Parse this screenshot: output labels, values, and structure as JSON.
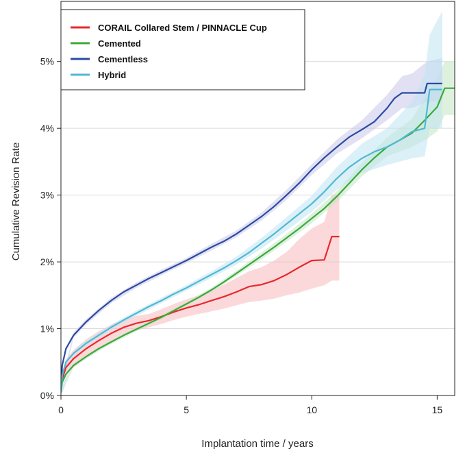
{
  "chart_data": {
    "type": "line",
    "title": "",
    "xlabel": "Implantation time / years",
    "ylabel": "Cumulative Revision Rate",
    "xlim": [
      0,
      15.7
    ],
    "ylim": [
      0,
      5.9
    ],
    "x_ticks": [
      0,
      5,
      10,
      15
    ],
    "y_ticks": [
      0,
      1,
      2,
      3,
      4,
      5
    ],
    "x_tick_labels": [
      "0",
      "5",
      "10",
      "15"
    ],
    "y_tick_labels": [
      "0%",
      "1%",
      "2%",
      "3%",
      "4%",
      "5%"
    ],
    "grid": "horizontal",
    "legend_position": "top-left",
    "series": [
      {
        "name": "CORAIL Collared Stem / PINNACLE Cup",
        "color": "#e8282d",
        "band_color": "#f7b9bb",
        "points": [
          [
            0,
            0.05
          ],
          [
            0.05,
            0.25
          ],
          [
            0.2,
            0.42
          ],
          [
            0.5,
            0.55
          ],
          [
            1,
            0.7
          ],
          [
            1.5,
            0.82
          ],
          [
            2,
            0.93
          ],
          [
            2.5,
            1.02
          ],
          [
            3,
            1.08
          ],
          [
            3.5,
            1.12
          ],
          [
            4,
            1.18
          ],
          [
            4.5,
            1.25
          ],
          [
            5,
            1.31
          ],
          [
            5.5,
            1.36
          ],
          [
            6,
            1.42
          ],
          [
            6.5,
            1.48
          ],
          [
            7,
            1.55
          ],
          [
            7.5,
            1.63
          ],
          [
            8,
            1.66
          ],
          [
            8.5,
            1.72
          ],
          [
            9,
            1.81
          ],
          [
            9.5,
            1.92
          ],
          [
            10,
            2.02
          ],
          [
            10.5,
            2.03
          ],
          [
            10.8,
            2.38
          ],
          [
            11.1,
            2.38
          ]
        ],
        "lower": [
          [
            0,
            0.0
          ],
          [
            0.05,
            0.15
          ],
          [
            0.2,
            0.3
          ],
          [
            0.5,
            0.42
          ],
          [
            1,
            0.56
          ],
          [
            1.5,
            0.68
          ],
          [
            2,
            0.8
          ],
          [
            2.5,
            0.9
          ],
          [
            3,
            0.97
          ],
          [
            3.5,
            1.02
          ],
          [
            4,
            1.07
          ],
          [
            4.5,
            1.13
          ],
          [
            5,
            1.18
          ],
          [
            5.5,
            1.22
          ],
          [
            6,
            1.26
          ],
          [
            6.5,
            1.3
          ],
          [
            7,
            1.35
          ],
          [
            7.5,
            1.4
          ],
          [
            8,
            1.42
          ],
          [
            8.5,
            1.45
          ],
          [
            9,
            1.5
          ],
          [
            9.5,
            1.54
          ],
          [
            10,
            1.6
          ],
          [
            10.5,
            1.65
          ],
          [
            10.8,
            1.72
          ],
          [
            11.1,
            1.72
          ]
        ],
        "upper": [
          [
            0,
            0.1
          ],
          [
            0.05,
            0.35
          ],
          [
            0.2,
            0.54
          ],
          [
            0.5,
            0.68
          ],
          [
            1,
            0.84
          ],
          [
            1.5,
            0.96
          ],
          [
            2,
            1.06
          ],
          [
            2.5,
            1.14
          ],
          [
            3,
            1.19
          ],
          [
            3.5,
            1.22
          ],
          [
            4,
            1.29
          ],
          [
            4.5,
            1.37
          ],
          [
            5,
            1.44
          ],
          [
            5.5,
            1.5
          ],
          [
            6,
            1.58
          ],
          [
            6.5,
            1.66
          ],
          [
            7,
            1.76
          ],
          [
            7.5,
            1.86
          ],
          [
            8,
            1.92
          ],
          [
            8.5,
            2.02
          ],
          [
            9,
            2.15
          ],
          [
            9.5,
            2.34
          ],
          [
            10,
            2.5
          ],
          [
            10.5,
            2.6
          ],
          [
            10.8,
            3.0
          ],
          [
            11.1,
            3.0
          ]
        ]
      },
      {
        "name": "Cemented",
        "color": "#3aa93a",
        "band_color": "#c3e6c3",
        "points": [
          [
            0,
            0.05
          ],
          [
            0.05,
            0.2
          ],
          [
            0.2,
            0.32
          ],
          [
            0.5,
            0.45
          ],
          [
            1,
            0.58
          ],
          [
            1.5,
            0.7
          ],
          [
            2,
            0.8
          ],
          [
            2.5,
            0.9
          ],
          [
            3,
            0.99
          ],
          [
            3.5,
            1.08
          ],
          [
            4,
            1.17
          ],
          [
            4.5,
            1.27
          ],
          [
            5,
            1.37
          ],
          [
            5.5,
            1.47
          ],
          [
            6,
            1.58
          ],
          [
            6.5,
            1.7
          ],
          [
            7,
            1.83
          ],
          [
            7.5,
            1.96
          ],
          [
            8,
            2.09
          ],
          [
            8.5,
            2.22
          ],
          [
            9,
            2.36
          ],
          [
            9.5,
            2.5
          ],
          [
            10,
            2.65
          ],
          [
            10.5,
            2.8
          ],
          [
            11,
            2.98
          ],
          [
            11.5,
            3.18
          ],
          [
            12,
            3.38
          ],
          [
            12.5,
            3.56
          ],
          [
            13,
            3.72
          ],
          [
            13.5,
            3.82
          ],
          [
            14,
            3.93
          ],
          [
            14.5,
            4.12
          ],
          [
            15,
            4.32
          ],
          [
            15.3,
            4.6
          ],
          [
            15.7,
            4.6
          ]
        ],
        "lower": [
          [
            0,
            0.0
          ],
          [
            0.5,
            0.42
          ],
          [
            1,
            0.55
          ],
          [
            2,
            0.77
          ],
          [
            3,
            0.96
          ],
          [
            4,
            1.14
          ],
          [
            5,
            1.34
          ],
          [
            6,
            1.55
          ],
          [
            7,
            1.79
          ],
          [
            8,
            2.04
          ],
          [
            9,
            2.3
          ],
          [
            10,
            2.58
          ],
          [
            11,
            2.9
          ],
          [
            12,
            3.28
          ],
          [
            13,
            3.58
          ],
          [
            14,
            3.72
          ],
          [
            14.5,
            3.82
          ],
          [
            15,
            3.95
          ],
          [
            15.3,
            4.2
          ],
          [
            15.7,
            4.2
          ]
        ],
        "upper": [
          [
            0,
            0.1
          ],
          [
            0.5,
            0.48
          ],
          [
            1,
            0.61
          ],
          [
            2,
            0.83
          ],
          [
            3,
            1.02
          ],
          [
            4,
            1.2
          ],
          [
            5,
            1.4
          ],
          [
            6,
            1.61
          ],
          [
            7,
            1.87
          ],
          [
            8,
            2.14
          ],
          [
            9,
            2.42
          ],
          [
            10,
            2.72
          ],
          [
            11,
            3.06
          ],
          [
            12,
            3.48
          ],
          [
            13,
            3.86
          ],
          [
            14,
            4.14
          ],
          [
            14.5,
            4.45
          ],
          [
            15,
            4.75
          ],
          [
            15.3,
            5.0
          ],
          [
            15.7,
            5.0
          ]
        ]
      },
      {
        "name": "Cementless",
        "color": "#2b4aa0",
        "band_color": "#c9c8ea",
        "points": [
          [
            0,
            0.1
          ],
          [
            0.05,
            0.45
          ],
          [
            0.2,
            0.7
          ],
          [
            0.5,
            0.9
          ],
          [
            1,
            1.1
          ],
          [
            1.5,
            1.27
          ],
          [
            2,
            1.42
          ],
          [
            2.5,
            1.55
          ],
          [
            3,
            1.65
          ],
          [
            3.5,
            1.75
          ],
          [
            4,
            1.84
          ],
          [
            4.5,
            1.93
          ],
          [
            5,
            2.02
          ],
          [
            5.5,
            2.12
          ],
          [
            6,
            2.22
          ],
          [
            6.5,
            2.31
          ],
          [
            7,
            2.42
          ],
          [
            7.5,
            2.55
          ],
          [
            8,
            2.68
          ],
          [
            8.5,
            2.83
          ],
          [
            9,
            3.0
          ],
          [
            9.5,
            3.18
          ],
          [
            10,
            3.38
          ],
          [
            10.5,
            3.56
          ],
          [
            11,
            3.72
          ],
          [
            11.5,
            3.87
          ],
          [
            12,
            3.98
          ],
          [
            12.5,
            4.1
          ],
          [
            13,
            4.3
          ],
          [
            13.3,
            4.45
          ],
          [
            13.6,
            4.53
          ],
          [
            14,
            4.53
          ],
          [
            14.5,
            4.53
          ],
          [
            14.6,
            4.67
          ],
          [
            15.2,
            4.67
          ]
        ],
        "lower": [
          [
            0,
            0.05
          ],
          [
            0.5,
            0.86
          ],
          [
            1,
            1.06
          ],
          [
            2,
            1.38
          ],
          [
            3,
            1.61
          ],
          [
            4,
            1.8
          ],
          [
            5,
            1.98
          ],
          [
            6,
            2.17
          ],
          [
            7,
            2.37
          ],
          [
            8,
            2.62
          ],
          [
            9,
            2.93
          ],
          [
            10,
            3.3
          ],
          [
            11,
            3.62
          ],
          [
            12,
            3.85
          ],
          [
            13,
            4.12
          ],
          [
            13.6,
            4.3
          ],
          [
            14,
            4.3
          ],
          [
            14.6,
            4.4
          ],
          [
            15.2,
            4.4
          ]
        ],
        "upper": [
          [
            0,
            0.15
          ],
          [
            0.5,
            0.94
          ],
          [
            1,
            1.14
          ],
          [
            2,
            1.46
          ],
          [
            3,
            1.69
          ],
          [
            4,
            1.88
          ],
          [
            5,
            2.06
          ],
          [
            6,
            2.27
          ],
          [
            7,
            2.47
          ],
          [
            8,
            2.74
          ],
          [
            9,
            3.08
          ],
          [
            10,
            3.46
          ],
          [
            11,
            3.83
          ],
          [
            12,
            4.12
          ],
          [
            13,
            4.5
          ],
          [
            13.6,
            4.78
          ],
          [
            14,
            4.82
          ],
          [
            14.6,
            5.0
          ],
          [
            15.2,
            5.05
          ]
        ]
      },
      {
        "name": "Hybrid",
        "color": "#4fb8d4",
        "band_color": "#bfe3f2",
        "points": [
          [
            0,
            0.05
          ],
          [
            0.05,
            0.3
          ],
          [
            0.2,
            0.5
          ],
          [
            0.5,
            0.63
          ],
          [
            1,
            0.78
          ],
          [
            1.5,
            0.9
          ],
          [
            2,
            1.02
          ],
          [
            2.5,
            1.13
          ],
          [
            3,
            1.23
          ],
          [
            3.5,
            1.33
          ],
          [
            4,
            1.42
          ],
          [
            4.5,
            1.52
          ],
          [
            5,
            1.61
          ],
          [
            5.5,
            1.71
          ],
          [
            6,
            1.81
          ],
          [
            6.5,
            1.91
          ],
          [
            7,
            2.02
          ],
          [
            7.5,
            2.14
          ],
          [
            8,
            2.28
          ],
          [
            8.5,
            2.42
          ],
          [
            9,
            2.57
          ],
          [
            9.5,
            2.72
          ],
          [
            10,
            2.87
          ],
          [
            10.5,
            3.05
          ],
          [
            11,
            3.25
          ],
          [
            11.5,
            3.42
          ],
          [
            12,
            3.55
          ],
          [
            12.5,
            3.65
          ],
          [
            13,
            3.72
          ],
          [
            13.5,
            3.82
          ],
          [
            14,
            3.95
          ],
          [
            14.5,
            4.0
          ],
          [
            14.7,
            4.58
          ],
          [
            15.2,
            4.58
          ]
        ],
        "lower": [
          [
            0,
            0.0
          ],
          [
            0.5,
            0.59
          ],
          [
            1,
            0.74
          ],
          [
            2,
            0.98
          ],
          [
            3,
            1.19
          ],
          [
            4,
            1.38
          ],
          [
            5,
            1.57
          ],
          [
            6,
            1.76
          ],
          [
            7,
            1.96
          ],
          [
            8,
            2.2
          ],
          [
            9,
            2.47
          ],
          [
            10,
            2.75
          ],
          [
            11,
            3.08
          ],
          [
            12,
            3.33
          ],
          [
            13,
            3.45
          ],
          [
            14,
            3.55
          ],
          [
            14.5,
            3.58
          ],
          [
            14.7,
            4.0
          ],
          [
            15.2,
            4.0
          ]
        ],
        "upper": [
          [
            0,
            0.1
          ],
          [
            0.5,
            0.67
          ],
          [
            1,
            0.82
          ],
          [
            2,
            1.06
          ],
          [
            3,
            1.27
          ],
          [
            4,
            1.46
          ],
          [
            5,
            1.65
          ],
          [
            6,
            1.86
          ],
          [
            7,
            2.08
          ],
          [
            8,
            2.36
          ],
          [
            9,
            2.67
          ],
          [
            10,
            2.99
          ],
          [
            11,
            3.42
          ],
          [
            12,
            3.77
          ],
          [
            13,
            4.0
          ],
          [
            14,
            4.4
          ],
          [
            14.5,
            4.8
          ],
          [
            14.7,
            5.4
          ],
          [
            15.2,
            5.75
          ]
        ]
      }
    ]
  }
}
